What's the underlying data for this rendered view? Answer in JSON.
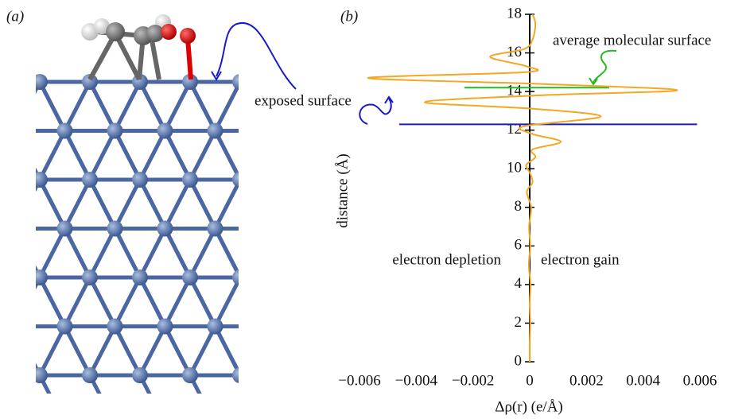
{
  "chart_data": {
    "type": "line",
    "panel_labels": [
      "(a)",
      "(b)"
    ],
    "xlabel": "Δρ(r) (e/Å)",
    "ylabel": "distance (Å)",
    "xlim": [
      -0.006,
      0.006
    ],
    "ylim": [
      0,
      18
    ],
    "xticks": [
      {
        "value": -0.006,
        "label": "−0.006"
      },
      {
        "value": -0.004,
        "label": "−0.004"
      },
      {
        "value": -0.002,
        "label": "−0.002"
      },
      0,
      0.002,
      0.004,
      0.006
    ],
    "yticks": [
      0,
      2,
      4,
      6,
      8,
      10,
      12,
      14,
      16,
      18
    ],
    "series": [
      {
        "color": "#f5a623",
        "x": [
          0,
          0,
          2e-05,
          0,
          3e-05,
          -3e-05,
          2e-05,
          -2e-05,
          5e-05,
          -0.0001,
          0.0001,
          0,
          -0.00012,
          0.0002,
          0.0001,
          0.0011,
          0.0001,
          -0.0002,
          0.0025,
          0.0002,
          -0.0037,
          0.0003,
          0.0052,
          0.0002,
          -0.0057,
          -0.0002,
          -0.0001,
          -0.0014,
          -0.0002,
          0.0001,
          0.0002,
          0.0001
        ],
        "y": [
          0,
          1,
          2,
          3,
          4,
          5,
          6,
          7,
          8,
          8.8,
          9.3,
          9.8,
          10.2,
          10.6,
          11.0,
          11.4,
          11.8,
          12.2,
          12.7,
          13.1,
          13.45,
          13.8,
          14.07,
          14.4,
          14.7,
          15.0,
          15.3,
          15.8,
          16.2,
          16.7,
          17.5,
          18
        ]
      }
    ],
    "hlines": [
      {
        "y": 12.3,
        "x": [
          -0.0046,
          0.0059
        ],
        "color": "#1a1acc"
      },
      {
        "y": 14.2,
        "x": [
          -0.0023,
          0.0028
        ],
        "color": "#22bb22"
      }
    ],
    "annotations": [
      {
        "text": "average molecular surface",
        "color": "#22bb22"
      },
      {
        "text": "exposed surface",
        "color": "#1a1acc"
      },
      {
        "text": "electron depletion",
        "color": "#1fa0e0"
      },
      {
        "text": "electron gain",
        "color": "#e02020"
      }
    ]
  }
}
